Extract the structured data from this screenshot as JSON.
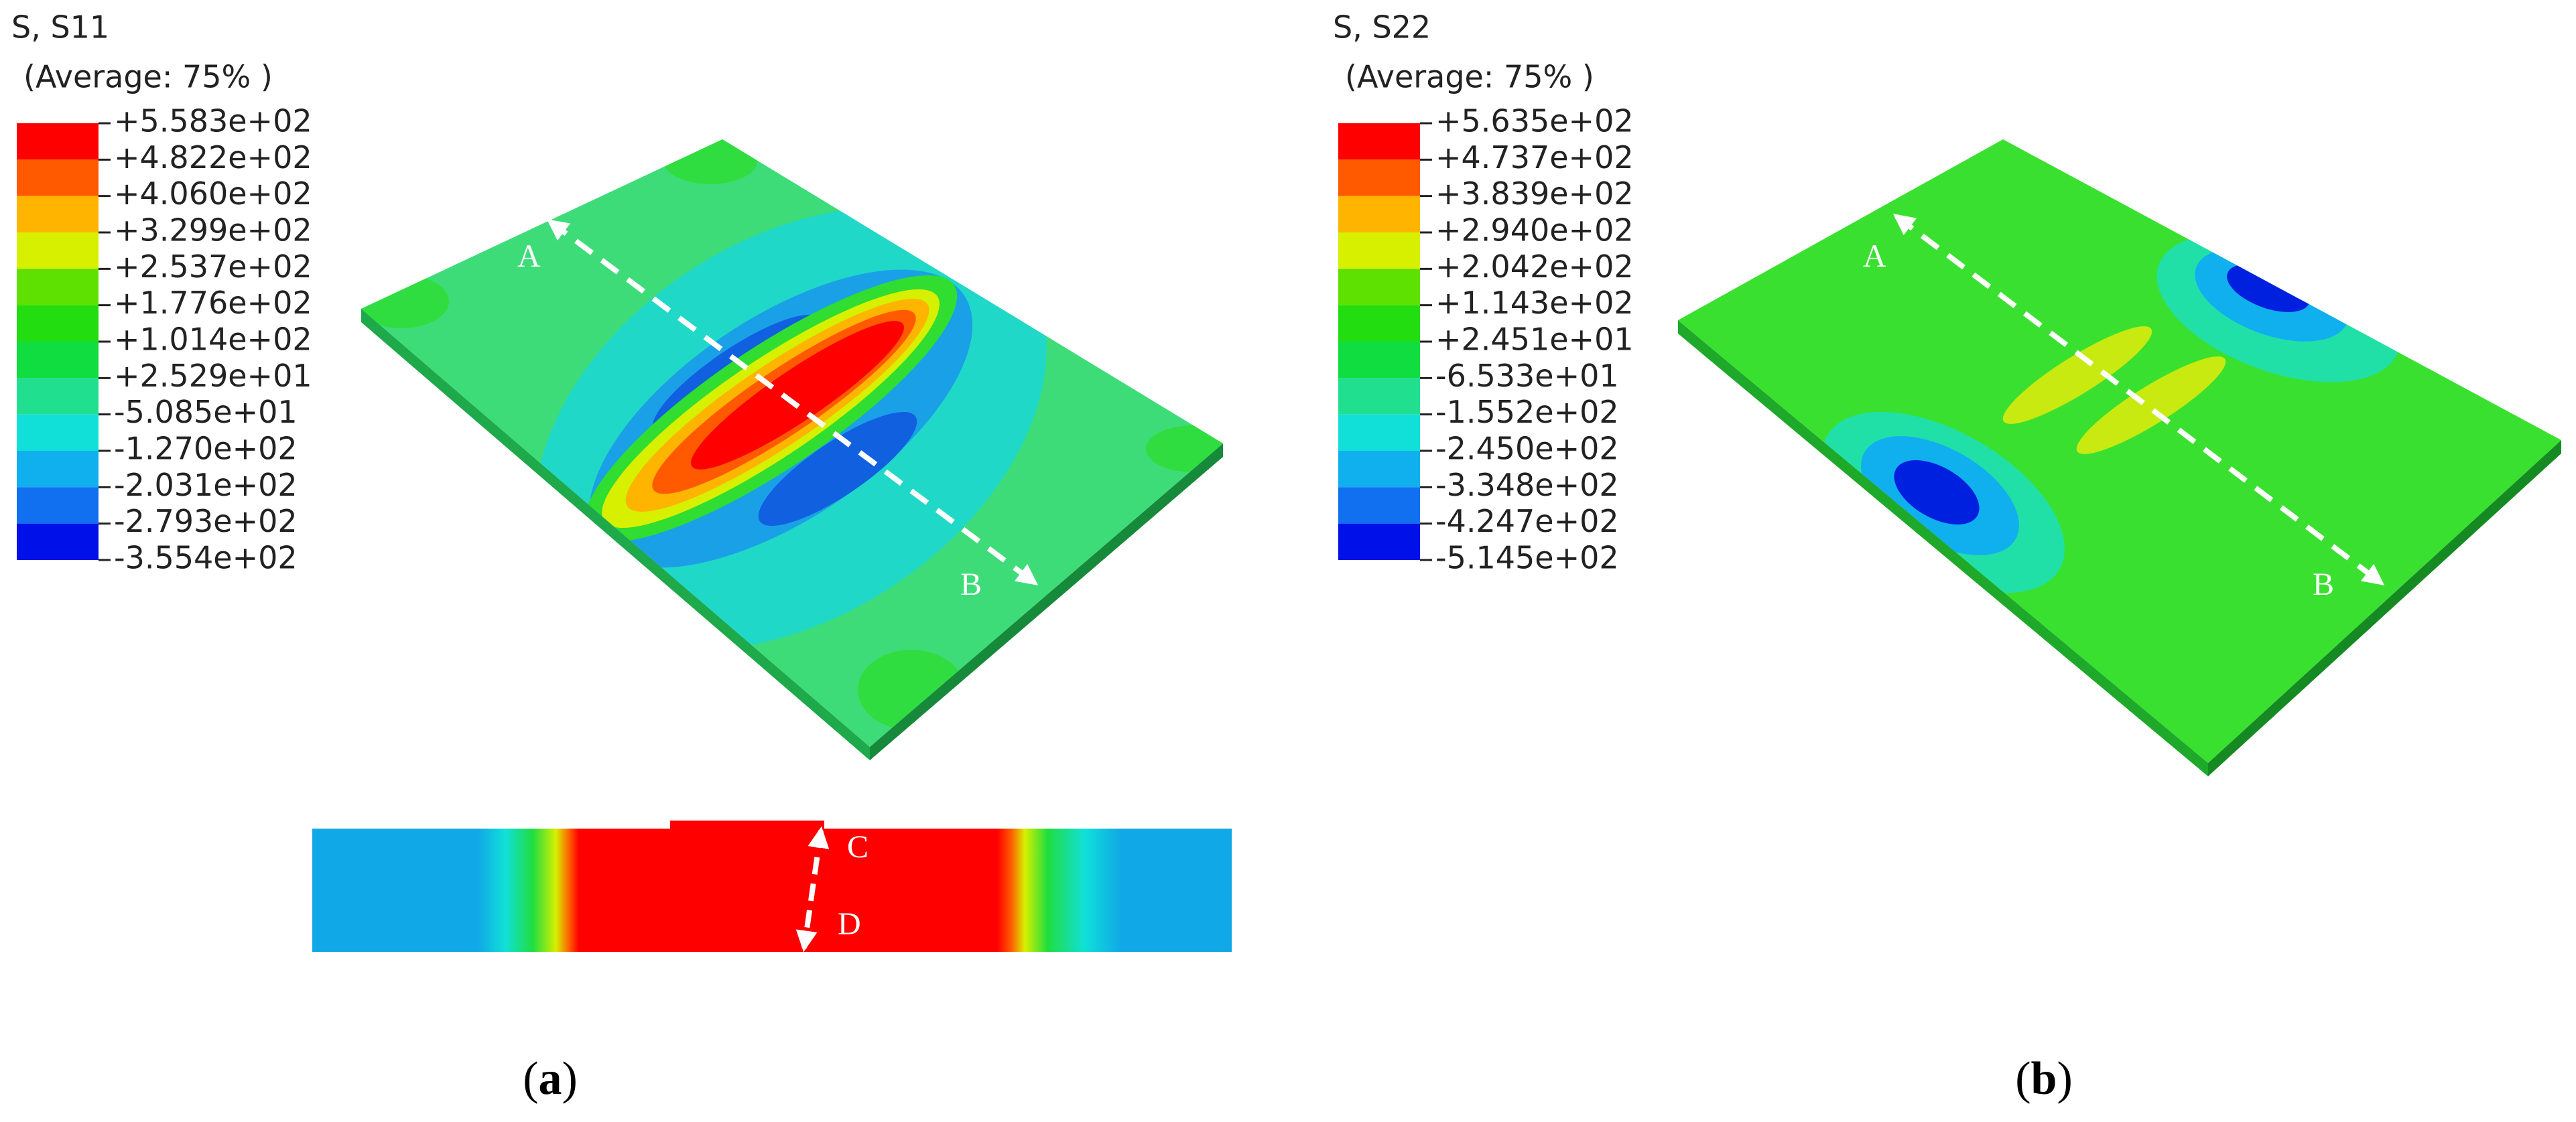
{
  "panels": [
    {
      "legend": {
        "title": "S, S11",
        "subtitle": "(Average: 75% )",
        "labels": [
          "+5.583e+02",
          "+4.822e+02",
          "+4.060e+02",
          "+3.299e+02",
          "+2.537e+02",
          "+1.776e+02",
          "+1.014e+02",
          "+2.529e+01",
          "-5.085e+01",
          "-1.270e+02",
          "-2.031e+02",
          "-2.793e+02",
          "-3.554e+02"
        ]
      },
      "path_labels": [
        "A",
        "B"
      ],
      "section_labels": [
        "C",
        "D"
      ],
      "caption": {
        "open": "(",
        "letter": "a",
        "close": ")"
      }
    },
    {
      "legend": {
        "title": "S, S22",
        "subtitle": "(Average: 75% )",
        "labels": [
          "+5.635e+02",
          "+4.737e+02",
          "+3.839e+02",
          "+2.940e+02",
          "+2.042e+02",
          "+1.143e+02",
          "+2.451e+01",
          "-6.533e+01",
          "-1.552e+02",
          "-2.450e+02",
          "-3.348e+02",
          "-4.247e+02",
          "-5.145e+02"
        ]
      },
      "path_labels": [
        "A",
        "B"
      ],
      "caption": {
        "open": "(",
        "letter": "b",
        "close": ")"
      }
    }
  ],
  "colors": [
    "#ff0000",
    "#ff5a00",
    "#ffb400",
    "#d6f000",
    "#5ee000",
    "#22dd10",
    "#10dd40",
    "#20e090",
    "#10e0d8",
    "#10b0ee",
    "#1070f0",
    "#0010e8"
  ]
}
